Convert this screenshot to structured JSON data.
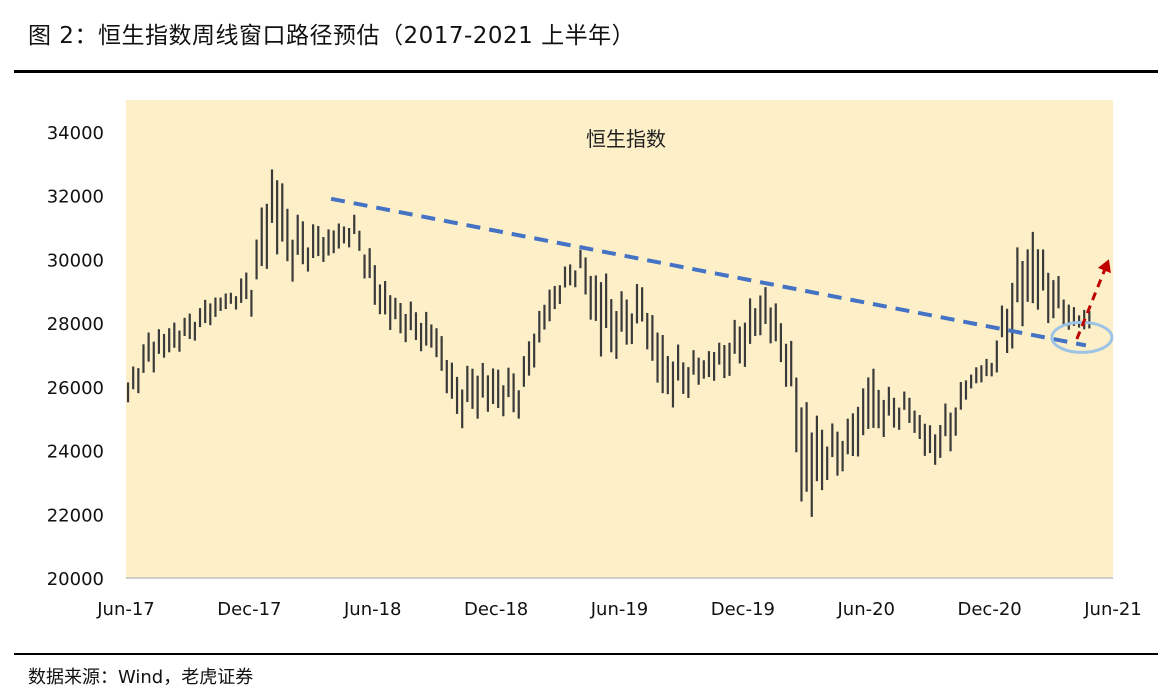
{
  "figure": {
    "title": "图 2：恒生指数周线窗口路径预估（2017-2021 上半年）",
    "source": "数据来源：Wind，老虎证券"
  },
  "colors": {
    "plot_background": "#fdf0c9",
    "candles": "#3a3a3a",
    "trendline": "#4472c4",
    "projection_arrow": "#c00000",
    "highlight_ellipse": "#9dc3e6",
    "axis": "#bfbfbf"
  },
  "chart_data": {
    "type": "line",
    "title": "恒生指数",
    "xlabel": "",
    "ylabel": "",
    "grid": false,
    "legend": "none",
    "ylim": [
      20000,
      35000
    ],
    "yticks": [
      20000,
      22000,
      24000,
      26000,
      28000,
      30000,
      32000,
      34000
    ],
    "xlim": [
      "2017-06",
      "2021-06"
    ],
    "xticks": [
      "Jun-17",
      "Dec-17",
      "Jun-18",
      "Dec-18",
      "Jun-19",
      "Dec-19",
      "Jun-20",
      "Dec-20",
      "Jun-21"
    ],
    "series": [
      {
        "style": "weekly high-low bars",
        "x": [
          "2017-06",
          "2017-07",
          "2017-08",
          "2017-09",
          "2017-10",
          "2017-11",
          "2017-12",
          "2018-01",
          "2018-02",
          "2018-03",
          "2018-04",
          "2018-05",
          "2018-06",
          "2018-07",
          "2018-08",
          "2018-09",
          "2018-10",
          "2018-11",
          "2018-12",
          "2019-01",
          "2019-02",
          "2019-03",
          "2019-04",
          "2019-05",
          "2019-06",
          "2019-07",
          "2019-08",
          "2019-09",
          "2019-10",
          "2019-11",
          "2019-12",
          "2020-01",
          "2020-02",
          "2020-03",
          "2020-04",
          "2020-05",
          "2020-06",
          "2020-07",
          "2020-08",
          "2020-09",
          "2020-10",
          "2020-11",
          "2020-12",
          "2021-01",
          "2021-02",
          "2021-03",
          "2021-04"
        ],
        "low": [
          25300,
          26300,
          26900,
          27300,
          27900,
          28500,
          28200,
          30200,
          29300,
          29700,
          30000,
          30500,
          28300,
          27600,
          27200,
          26800,
          24600,
          25000,
          25100,
          25000,
          27100,
          28600,
          29300,
          26800,
          26900,
          27700,
          25200,
          25500,
          26100,
          26200,
          26600,
          27700,
          26000,
          21200,
          23000,
          23300,
          24200,
          24500,
          24800,
          23400,
          23900,
          25900,
          26200,
          27200,
          28300,
          27900,
          27700
        ],
        "high": [
          26300,
          27800,
          28000,
          28300,
          28900,
          29000,
          29800,
          33500,
          31500,
          31100,
          31100,
          31400,
          30000,
          28900,
          28600,
          28100,
          26500,
          26900,
          26700,
          26500,
          28600,
          29600,
          30300,
          29800,
          29000,
          29300,
          27700,
          27200,
          27100,
          27600,
          28600,
          29300,
          28000,
          25800,
          24800,
          25000,
          26800,
          26000,
          25800,
          24800,
          25700,
          26600,
          27000,
          30100,
          31200,
          29800,
          28500
        ]
      }
    ],
    "annotations": {
      "trendline": {
        "from": [
          "2018-03",
          31900
        ],
        "to": [
          "2021-04",
          27300
        ],
        "style": "dashed"
      },
      "projection_arrow": {
        "from": [
          "2021-04",
          27500
        ],
        "to": [
          "2021-06",
          30000
        ],
        "style": "dashed arrow"
      },
      "highlight_ellipse": {
        "center": [
          "2021-04",
          27550
        ]
      }
    }
  }
}
